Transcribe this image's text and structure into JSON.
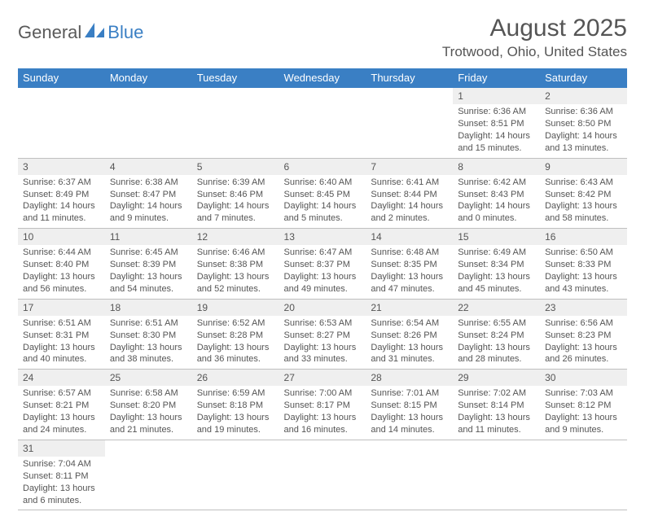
{
  "logo": {
    "text1": "General",
    "text2": "Blue"
  },
  "title": "August 2025",
  "location": "Trotwood, Ohio, United States",
  "colors": {
    "header_bg": "#3a7fc4",
    "header_text": "#ffffff",
    "daynum_bg": "#efefef",
    "text": "#555555",
    "row_border": "#3a7fc4"
  },
  "day_headers": [
    "Sunday",
    "Monday",
    "Tuesday",
    "Wednesday",
    "Thursday",
    "Friday",
    "Saturday"
  ],
  "weeks": [
    [
      null,
      null,
      null,
      null,
      null,
      {
        "n": "1",
        "sr": "6:36 AM",
        "ss": "8:51 PM",
        "dl": "14 hours and 15 minutes."
      },
      {
        "n": "2",
        "sr": "6:36 AM",
        "ss": "8:50 PM",
        "dl": "14 hours and 13 minutes."
      }
    ],
    [
      {
        "n": "3",
        "sr": "6:37 AM",
        "ss": "8:49 PM",
        "dl": "14 hours and 11 minutes."
      },
      {
        "n": "4",
        "sr": "6:38 AM",
        "ss": "8:47 PM",
        "dl": "14 hours and 9 minutes."
      },
      {
        "n": "5",
        "sr": "6:39 AM",
        "ss": "8:46 PM",
        "dl": "14 hours and 7 minutes."
      },
      {
        "n": "6",
        "sr": "6:40 AM",
        "ss": "8:45 PM",
        "dl": "14 hours and 5 minutes."
      },
      {
        "n": "7",
        "sr": "6:41 AM",
        "ss": "8:44 PM",
        "dl": "14 hours and 2 minutes."
      },
      {
        "n": "8",
        "sr": "6:42 AM",
        "ss": "8:43 PM",
        "dl": "14 hours and 0 minutes."
      },
      {
        "n": "9",
        "sr": "6:43 AM",
        "ss": "8:42 PM",
        "dl": "13 hours and 58 minutes."
      }
    ],
    [
      {
        "n": "10",
        "sr": "6:44 AM",
        "ss": "8:40 PM",
        "dl": "13 hours and 56 minutes."
      },
      {
        "n": "11",
        "sr": "6:45 AM",
        "ss": "8:39 PM",
        "dl": "13 hours and 54 minutes."
      },
      {
        "n": "12",
        "sr": "6:46 AM",
        "ss": "8:38 PM",
        "dl": "13 hours and 52 minutes."
      },
      {
        "n": "13",
        "sr": "6:47 AM",
        "ss": "8:37 PM",
        "dl": "13 hours and 49 minutes."
      },
      {
        "n": "14",
        "sr": "6:48 AM",
        "ss": "8:35 PM",
        "dl": "13 hours and 47 minutes."
      },
      {
        "n": "15",
        "sr": "6:49 AM",
        "ss": "8:34 PM",
        "dl": "13 hours and 45 minutes."
      },
      {
        "n": "16",
        "sr": "6:50 AM",
        "ss": "8:33 PM",
        "dl": "13 hours and 43 minutes."
      }
    ],
    [
      {
        "n": "17",
        "sr": "6:51 AM",
        "ss": "8:31 PM",
        "dl": "13 hours and 40 minutes."
      },
      {
        "n": "18",
        "sr": "6:51 AM",
        "ss": "8:30 PM",
        "dl": "13 hours and 38 minutes."
      },
      {
        "n": "19",
        "sr": "6:52 AM",
        "ss": "8:28 PM",
        "dl": "13 hours and 36 minutes."
      },
      {
        "n": "20",
        "sr": "6:53 AM",
        "ss": "8:27 PM",
        "dl": "13 hours and 33 minutes."
      },
      {
        "n": "21",
        "sr": "6:54 AM",
        "ss": "8:26 PM",
        "dl": "13 hours and 31 minutes."
      },
      {
        "n": "22",
        "sr": "6:55 AM",
        "ss": "8:24 PM",
        "dl": "13 hours and 28 minutes."
      },
      {
        "n": "23",
        "sr": "6:56 AM",
        "ss": "8:23 PM",
        "dl": "13 hours and 26 minutes."
      }
    ],
    [
      {
        "n": "24",
        "sr": "6:57 AM",
        "ss": "8:21 PM",
        "dl": "13 hours and 24 minutes."
      },
      {
        "n": "25",
        "sr": "6:58 AM",
        "ss": "8:20 PM",
        "dl": "13 hours and 21 minutes."
      },
      {
        "n": "26",
        "sr": "6:59 AM",
        "ss": "8:18 PM",
        "dl": "13 hours and 19 minutes."
      },
      {
        "n": "27",
        "sr": "7:00 AM",
        "ss": "8:17 PM",
        "dl": "13 hours and 16 minutes."
      },
      {
        "n": "28",
        "sr": "7:01 AM",
        "ss": "8:15 PM",
        "dl": "13 hours and 14 minutes."
      },
      {
        "n": "29",
        "sr": "7:02 AM",
        "ss": "8:14 PM",
        "dl": "13 hours and 11 minutes."
      },
      {
        "n": "30",
        "sr": "7:03 AM",
        "ss": "8:12 PM",
        "dl": "13 hours and 9 minutes."
      }
    ],
    [
      {
        "n": "31",
        "sr": "7:04 AM",
        "ss": "8:11 PM",
        "dl": "13 hours and 6 minutes."
      },
      null,
      null,
      null,
      null,
      null,
      null
    ]
  ],
  "labels": {
    "sunrise": "Sunrise:",
    "sunset": "Sunset:",
    "daylight": "Daylight:"
  }
}
